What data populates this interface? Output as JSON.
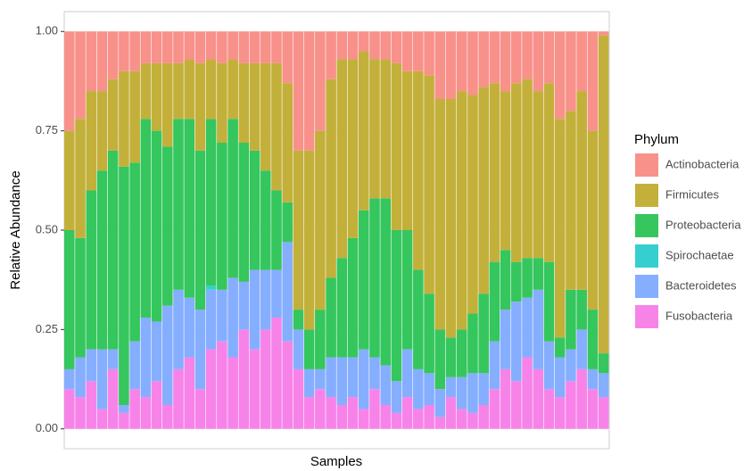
{
  "chart_data": {
    "type": "stacked_bar",
    "x_label": "Samples",
    "y_label": "Relative Abundance",
    "legend_title": "Phylum",
    "categories": [
      null,
      null,
      null,
      null,
      null,
      null,
      null,
      null,
      null,
      null,
      null,
      null,
      null,
      null,
      null,
      null,
      null,
      null,
      null,
      null,
      null,
      null,
      null,
      null,
      null,
      null,
      null,
      null,
      null,
      null,
      null,
      null,
      null,
      null,
      null,
      null,
      null,
      null,
      null,
      null,
      null,
      null,
      null,
      null,
      null,
      null,
      null,
      null,
      null,
      null
    ],
    "ylim": [
      -0.05,
      1.05
    ],
    "yticks": [
      {
        "value": 0,
        "label": "0.00"
      },
      {
        "value": 0.25,
        "label": "0.25"
      },
      {
        "value": 0.5,
        "label": "0.50"
      },
      {
        "value": 0.75,
        "label": "0.75"
      },
      {
        "value": 1,
        "label": "1.00"
      }
    ],
    "grid": true,
    "series": [
      {
        "name": "Actinobacteria",
        "color": "#F8918A",
        "values": [
          0.25,
          0.22,
          0.15,
          0.15,
          0.12,
          0.1,
          0.1,
          0.08,
          0.08,
          0.08,
          0.08,
          0.07,
          0.08,
          0.07,
          0.08,
          0.07,
          0.08,
          0.08,
          0.08,
          0.08,
          0.13,
          0.3,
          0.3,
          0.25,
          0.12,
          0.07,
          0.07,
          0.05,
          0.07,
          0.07,
          0.08,
          0.1,
          0.1,
          0.11,
          0.17,
          0.17,
          0.15,
          0.16,
          0.14,
          0.13,
          0.15,
          0.13,
          0.12,
          0.15,
          0.13,
          0.22,
          0.2,
          0.15,
          0.25,
          0.01
        ]
      },
      {
        "name": "Firmicutes",
        "color": "#C3B03A",
        "values": [
          0.25,
          0.3,
          0.25,
          0.2,
          0.18,
          0.24,
          0.23,
          0.14,
          0.17,
          0.21,
          0.14,
          0.15,
          0.22,
          0.15,
          0.2,
          0.15,
          0.2,
          0.22,
          0.27,
          0.32,
          0.3,
          0.4,
          0.45,
          0.45,
          0.5,
          0.5,
          0.45,
          0.4,
          0.35,
          0.35,
          0.42,
          0.4,
          0.5,
          0.55,
          0.58,
          0.6,
          0.6,
          0.55,
          0.52,
          0.45,
          0.4,
          0.45,
          0.45,
          0.42,
          0.45,
          0.55,
          0.45,
          0.5,
          0.45,
          0.8
        ]
      },
      {
        "name": "Proteobacteria",
        "color": "#35C65E",
        "values": [
          0.35,
          0.3,
          0.4,
          0.45,
          0.5,
          0.6,
          0.45,
          0.5,
          0.48,
          0.4,
          0.43,
          0.45,
          0.4,
          0.42,
          0.37,
          0.4,
          0.35,
          0.3,
          0.25,
          0.2,
          0.1,
          0.05,
          0.1,
          0.15,
          0.2,
          0.25,
          0.3,
          0.35,
          0.4,
          0.42,
          0.38,
          0.3,
          0.25,
          0.2,
          0.15,
          0.1,
          0.12,
          0.15,
          0.2,
          0.2,
          0.15,
          0.1,
          0.1,
          0.08,
          0.2,
          0.05,
          0.15,
          0.1,
          0.15,
          0.05
        ]
      },
      {
        "name": "Spirochaetae",
        "color": "#36CFCF",
        "values": [
          0,
          0,
          0,
          0,
          0,
          0,
          0,
          0,
          0,
          0,
          0,
          0,
          0,
          0.01,
          0,
          0,
          0,
          0,
          0,
          0,
          0,
          0,
          0,
          0,
          0,
          0,
          0,
          0,
          0,
          0,
          0,
          0,
          0,
          0,
          0,
          0,
          0,
          0,
          0,
          0,
          0,
          0,
          0,
          0,
          0,
          0,
          0,
          0,
          0,
          0
        ]
      },
      {
        "name": "Bacteroidetes",
        "color": "#85AEFF",
        "values": [
          0.05,
          0.1,
          0.08,
          0.15,
          0.05,
          0.02,
          0.12,
          0.2,
          0.15,
          0.25,
          0.2,
          0.15,
          0.2,
          0.15,
          0.13,
          0.2,
          0.12,
          0.2,
          0.15,
          0.12,
          0.25,
          0.1,
          0.07,
          0.05,
          0.1,
          0.12,
          0.1,
          0.15,
          0.08,
          0.1,
          0.08,
          0.12,
          0.1,
          0.08,
          0.07,
          0.05,
          0.08,
          0.1,
          0.08,
          0.12,
          0.15,
          0.2,
          0.15,
          0.2,
          0.12,
          0.1,
          0.08,
          0.1,
          0.05,
          0.06
        ]
      },
      {
        "name": "Fusobacteria",
        "color": "#F783E9",
        "values": [
          0.1,
          0.08,
          0.12,
          0.05,
          0.15,
          0.04,
          0.1,
          0.08,
          0.12,
          0.06,
          0.15,
          0.18,
          0.1,
          0.2,
          0.22,
          0.18,
          0.25,
          0.2,
          0.25,
          0.28,
          0.22,
          0.15,
          0.08,
          0.1,
          0.08,
          0.06,
          0.08,
          0.05,
          0.1,
          0.06,
          0.04,
          0.08,
          0.05,
          0.06,
          0.03,
          0.08,
          0.05,
          0.04,
          0.06,
          0.1,
          0.15,
          0.12,
          0.18,
          0.15,
          0.1,
          0.08,
          0.12,
          0.15,
          0.1,
          0.08
        ]
      }
    ]
  }
}
